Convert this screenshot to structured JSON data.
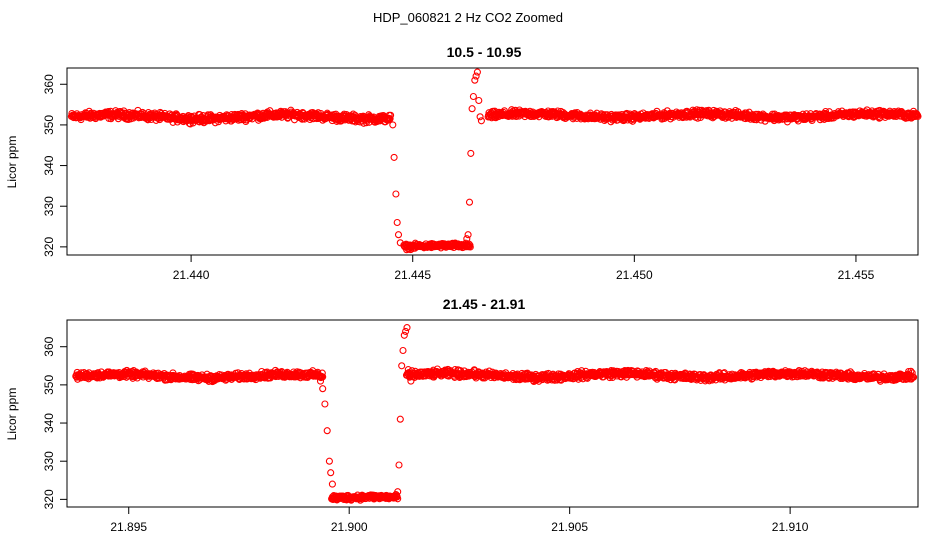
{
  "figure_title": "HDP_060821  2 Hz CO2 Zoomed",
  "colors": {
    "points": "#ff0000",
    "axes": "#000000",
    "background": "#ffffff"
  },
  "chart_data": [
    {
      "type": "scatter",
      "title": "10.5 - 10.95",
      "xlabel": "",
      "ylabel": "Licor ppm",
      "xlim": [
        21.4372,
        21.4564
      ],
      "ylim": [
        318,
        364
      ],
      "xticks": [
        "21.440",
        "21.445",
        "21.450",
        "21.455"
      ],
      "xtick_values": [
        21.44,
        21.445,
        21.45,
        21.455
      ],
      "yticks": [
        "320",
        "330",
        "340",
        "350",
        "360"
      ],
      "ytick_values": [
        320,
        330,
        340,
        350,
        360
      ],
      "marker": "open-circle",
      "series": [
        {
          "segments": [
            {
              "x_start": 21.4373,
              "x_end": 21.4445,
              "y_mean": 352,
              "y_spread": 1.4
            },
            {
              "x_start": 21.4448,
              "x_end": 21.4463,
              "y_mean": 320,
              "y_spread": 0.9
            },
            {
              "x_start": 21.4467,
              "x_end": 21.4564,
              "y_mean": 352.3,
              "y_spread": 1.3
            }
          ],
          "points": [
            {
              "x": 21.44455,
              "y": 350
            },
            {
              "x": 21.44458,
              "y": 342
            },
            {
              "x": 21.44462,
              "y": 333
            },
            {
              "x": 21.44465,
              "y": 326
            },
            {
              "x": 21.44468,
              "y": 323
            },
            {
              "x": 21.44472,
              "y": 321
            },
            {
              "x": 21.44622,
              "y": 322
            },
            {
              "x": 21.44625,
              "y": 323
            },
            {
              "x": 21.44628,
              "y": 331
            },
            {
              "x": 21.44631,
              "y": 343
            },
            {
              "x": 21.44634,
              "y": 354
            },
            {
              "x": 21.44637,
              "y": 357
            },
            {
              "x": 21.4464,
              "y": 361
            },
            {
              "x": 21.44643,
              "y": 362
            },
            {
              "x": 21.44646,
              "y": 363
            },
            {
              "x": 21.44649,
              "y": 356
            },
            {
              "x": 21.44652,
              "y": 352
            },
            {
              "x": 21.44655,
              "y": 351
            }
          ]
        }
      ]
    },
    {
      "type": "scatter",
      "title": "21.45 - 21.91",
      "xlabel": "",
      "ylabel": "Licor ppm",
      "xlim": [
        21.8936,
        21.9129
      ],
      "ylim": [
        318,
        367
      ],
      "xticks": [
        "21.895",
        "21.900",
        "21.905",
        "21.910"
      ],
      "xtick_values": [
        21.895,
        21.9,
        21.905,
        21.91
      ],
      "yticks": [
        "320",
        "330",
        "340",
        "350",
        "360"
      ],
      "ytick_values": [
        320,
        330,
        340,
        350,
        360
      ],
      "marker": "open-circle",
      "series": [
        {
          "segments": [
            {
              "x_start": 21.8938,
              "x_end": 21.8994,
              "y_mean": 352.3,
              "y_spread": 1.3
            },
            {
              "x_start": 21.8996,
              "x_end": 21.9011,
              "y_mean": 320.3,
              "y_spread": 1.0
            },
            {
              "x_start": 21.9013,
              "x_end": 21.9128,
              "y_mean": 352.5,
              "y_spread": 1.4
            }
          ],
          "points": [
            {
              "x": 21.89935,
              "y": 351
            },
            {
              "x": 21.8994,
              "y": 349
            },
            {
              "x": 21.89945,
              "y": 345
            },
            {
              "x": 21.8995,
              "y": 338
            },
            {
              "x": 21.89955,
              "y": 330
            },
            {
              "x": 21.89958,
              "y": 327
            },
            {
              "x": 21.89962,
              "y": 324
            },
            {
              "x": 21.89965,
              "y": 321
            },
            {
              "x": 21.9011,
              "y": 322
            },
            {
              "x": 21.90113,
              "y": 329
            },
            {
              "x": 21.90116,
              "y": 341
            },
            {
              "x": 21.90119,
              "y": 355
            },
            {
              "x": 21.90122,
              "y": 359
            },
            {
              "x": 21.90125,
              "y": 363
            },
            {
              "x": 21.90128,
              "y": 364
            },
            {
              "x": 21.90131,
              "y": 365
            },
            {
              "x": 21.90134,
              "y": 354
            },
            {
              "x": 21.90137,
              "y": 352
            },
            {
              "x": 21.9014,
              "y": 351
            }
          ]
        }
      ]
    }
  ]
}
